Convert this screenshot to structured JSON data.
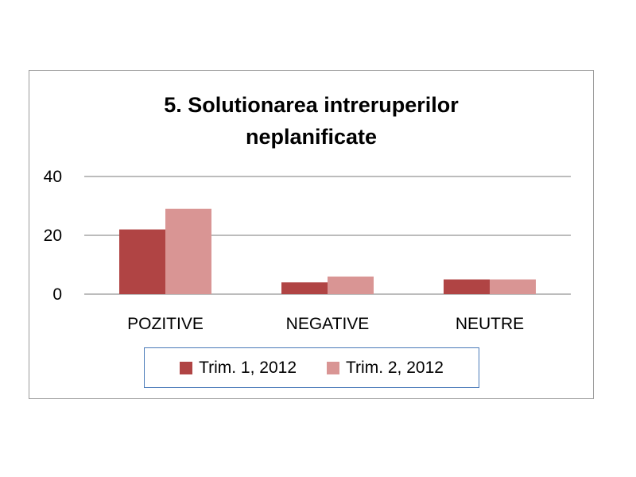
{
  "chart_data": {
    "type": "bar",
    "title": "5. Solutionarea intreruperilor neplanificate",
    "title_lines": [
      "5. Solutionarea intreruperilor",
      "neplanificate"
    ],
    "categories": [
      "POZITIVE",
      "NEGATIVE",
      "NEUTRE"
    ],
    "series": [
      {
        "name": "Trim. 1, 2012",
        "values": [
          22,
          4,
          5
        ],
        "color": "#b04444"
      },
      {
        "name": "Trim. 2, 2012",
        "values": [
          29,
          6,
          5
        ],
        "color": "#d99594"
      }
    ],
    "ylim": [
      0,
      40
    ],
    "yticks": [
      0,
      20,
      40
    ],
    "xlabel": "",
    "ylabel": "",
    "grid": true,
    "legend_position": "bottom"
  },
  "colors": {
    "gridline": "#a6a6a6",
    "frame_border": "#9a9a9a",
    "legend_border": "#4a7ab8"
  }
}
